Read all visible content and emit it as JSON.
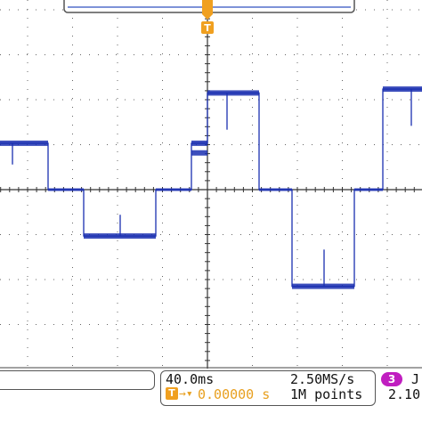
{
  "display": {
    "background": "#ffffff",
    "grid_color": "#555555",
    "waveform_color": "#1a2fb0",
    "trigger_marker_color": "#f0a020",
    "trigger_marker_label": "T"
  },
  "waveform": {
    "comment_levels": "voltage-like levels in divisions relative to the center axis",
    "levels": [
      1.2,
      0.0,
      -1.2,
      0.0,
      1.2,
      2.5,
      0.0,
      -2.5,
      0.0,
      2.6
    ]
  },
  "status": {
    "timebase": "40.0ms",
    "sample_rate": "2.50MS/s",
    "trigger_label": "T",
    "trigger_position": "0.00000 s",
    "record_length": "1M points",
    "channel_badge": "3",
    "channel_badge_color": "#c01ec0",
    "trigger_level_partial": "2.10",
    "trigger_slope_partial": "J"
  }
}
